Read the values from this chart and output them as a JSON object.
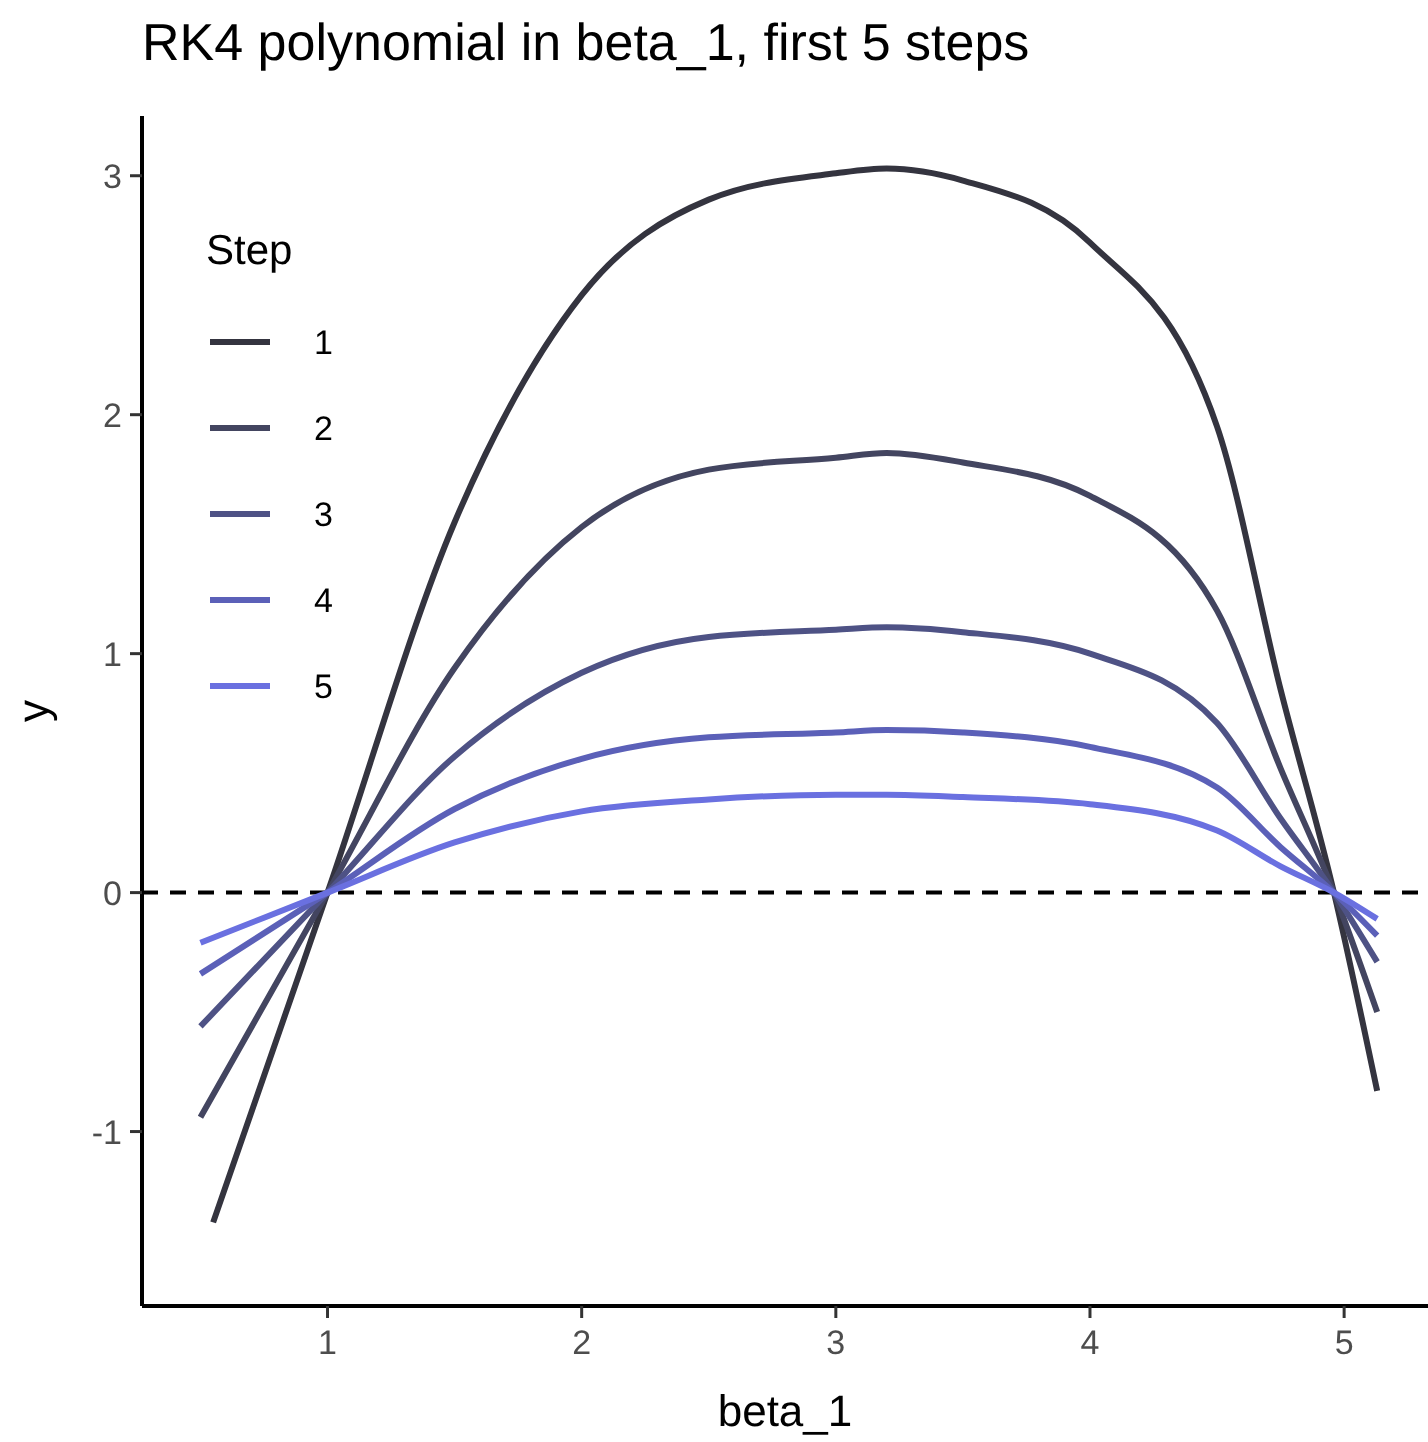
{
  "chart_data": {
    "type": "line",
    "title": "RK4 polynomial in beta_1, first 5 steps",
    "xlabel": "beta_1",
    "ylabel": "y",
    "legend_title": "Step",
    "legend": "top left",
    "grid": false,
    "line_style": "solid",
    "marker": "none",
    "xlim": [
      0.27,
      5.33
    ],
    "xticks": [
      1,
      2,
      3,
      4,
      5
    ],
    "ylim": [
      -1.73,
      3.25
    ],
    "yticks": [
      -1,
      0,
      1,
      2,
      3
    ],
    "ref_lines": [
      {
        "axis": "y",
        "value": 0,
        "line_style": "dashed",
        "color": "#000000"
      }
    ],
    "series": [
      {
        "name": "1",
        "color": "#34343f",
        "x": [
          0.55,
          1,
          1.5,
          2,
          2.5,
          3,
          3.2,
          3.5,
          4,
          4.5,
          4.75,
          4.96,
          5.13
        ],
        "values": [
          -1.38,
          0,
          1.55,
          2.5,
          2.9,
          3.01,
          3.03,
          2.98,
          2.72,
          1.95,
          0.85,
          0,
          -0.83
        ]
      },
      {
        "name": "2",
        "color": "#434560",
        "x": [
          0.5,
          1,
          1.5,
          2,
          2.5,
          3,
          3.2,
          3.5,
          4,
          4.5,
          4.75,
          4.96,
          5.13
        ],
        "values": [
          -0.94,
          0,
          0.94,
          1.53,
          1.77,
          1.82,
          1.84,
          1.8,
          1.66,
          1.18,
          0.52,
          0,
          -0.5
        ]
      },
      {
        "name": "3",
        "color": "#4e5285",
        "x": [
          0.5,
          1,
          1.5,
          2,
          2.5,
          3,
          3.2,
          3.5,
          4,
          4.5,
          4.75,
          4.96,
          5.13
        ],
        "values": [
          -0.56,
          0,
          0.57,
          0.92,
          1.07,
          1.1,
          1.11,
          1.09,
          1.0,
          0.71,
          0.31,
          0,
          -0.29
        ]
      },
      {
        "name": "4",
        "color": "#5b60b8",
        "x": [
          0.5,
          1,
          1.5,
          2,
          2.5,
          3,
          3.2,
          3.5,
          4,
          4.5,
          4.75,
          4.96,
          5.13
        ],
        "values": [
          -0.34,
          0,
          0.35,
          0.56,
          0.65,
          0.67,
          0.68,
          0.67,
          0.61,
          0.44,
          0.19,
          0,
          -0.18
        ]
      },
      {
        "name": "5",
        "color": "#6a70e0",
        "x": [
          0.5,
          1,
          1.5,
          2,
          2.5,
          3,
          3.2,
          3.5,
          4,
          4.5,
          4.75,
          4.96,
          5.13
        ],
        "values": [
          -0.21,
          0,
          0.21,
          0.34,
          0.39,
          0.41,
          0.41,
          0.4,
          0.37,
          0.26,
          0.11,
          0,
          -0.11
        ]
      }
    ]
  }
}
